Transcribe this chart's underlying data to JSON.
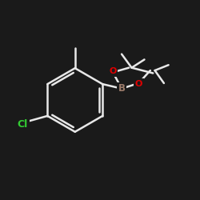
{
  "bg_color": "#1a1a1a",
  "line_color": "#f0f0f0",
  "bond_color": "#e8e8e8",
  "atom_colors": {
    "B": "#9B7B6A",
    "O": "#e00000",
    "Cl": "#33cc33"
  },
  "bond_width": 1.8,
  "font_size": 8.5,
  "fig_size": [
    2.5,
    2.5
  ],
  "dpi": 100,
  "xlim": [
    -2.2,
    2.2
  ],
  "ylim": [
    -1.8,
    1.8
  ]
}
